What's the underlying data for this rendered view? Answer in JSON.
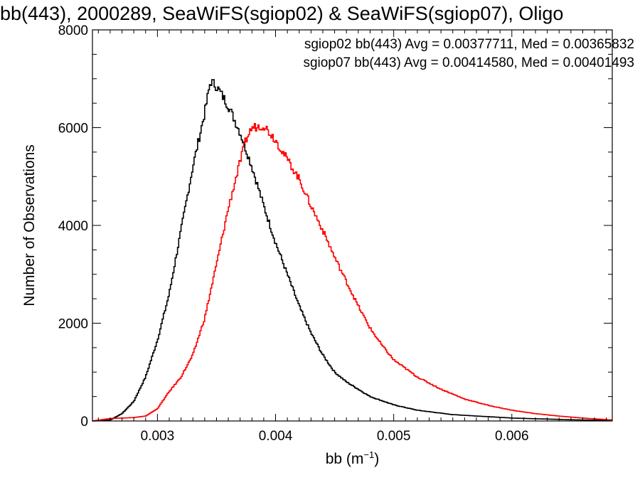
{
  "chart_data": {
    "type": "histogram-step",
    "title": "bb(443), 2000289, SeaWiFS(sgiop02) & SeaWiFS(sgiop07), Oligo",
    "xlabel": "bb (m",
    "xlabel_sup": "−1",
    "xlabel_close": ")",
    "ylabel": "Number of Observations",
    "xlim": [
      0.00245,
      0.00685
    ],
    "ylim": [
      0,
      8000
    ],
    "x_ticks": [
      {
        "v": 0.003,
        "label": "0.003"
      },
      {
        "v": 0.004,
        "label": "0.004"
      },
      {
        "v": 0.005,
        "label": "0.005"
      },
      {
        "v": 0.006,
        "label": "0.006"
      }
    ],
    "y_ticks": [
      {
        "v": 0,
        "label": "0"
      },
      {
        "v": 2000,
        "label": "2000"
      },
      {
        "v": 4000,
        "label": "4000"
      },
      {
        "v": 6000,
        "label": "6000"
      },
      {
        "v": 8000,
        "label": "8000"
      }
    ],
    "bin_width": 1e-05,
    "series": [
      {
        "color": "#000000",
        "annotation": "sgiop02 bb(443) Avg = 0.00377711, Med = 0.00365832",
        "x": [
          0.00245,
          0.0026,
          0.0027,
          0.0028,
          0.0029,
          0.003,
          0.0031,
          0.0032,
          0.0033,
          0.0034,
          0.00345,
          0.0035,
          0.0036,
          0.0037,
          0.0038,
          0.0039,
          0.004,
          0.0041,
          0.0042,
          0.0043,
          0.0044,
          0.0045,
          0.0046,
          0.0047,
          0.0048,
          0.005,
          0.0052,
          0.0055,
          0.006,
          0.0065,
          0.00685
        ],
        "y": [
          0,
          20,
          150,
          400,
          900,
          1650,
          2600,
          3900,
          5200,
          6300,
          6950,
          6850,
          6450,
          5900,
          5200,
          4400,
          3650,
          3000,
          2350,
          1800,
          1350,
          1000,
          800,
          650,
          500,
          330,
          220,
          130,
          60,
          25,
          10
        ]
      },
      {
        "color": "#ff0000",
        "annotation": "sgiop07 bb(443) Avg = 0.00414580, Med = 0.00401493",
        "x": [
          0.00245,
          0.0026,
          0.0028,
          0.0029,
          0.003,
          0.0031,
          0.0032,
          0.0033,
          0.0034,
          0.0035,
          0.0036,
          0.0037,
          0.00375,
          0.0038,
          0.0039,
          0.004,
          0.0041,
          0.0042,
          0.0043,
          0.0044,
          0.0045,
          0.0046,
          0.0047,
          0.0048,
          0.0049,
          0.005,
          0.0052,
          0.0054,
          0.0056,
          0.0058,
          0.006,
          0.0062,
          0.0064,
          0.0066,
          0.00685
        ],
        "y": [
          0,
          50,
          70,
          100,
          250,
          600,
          900,
          1350,
          2100,
          3200,
          4350,
          5300,
          5750,
          6000,
          6050,
          5750,
          5350,
          4950,
          4400,
          3900,
          3350,
          2850,
          2350,
          1900,
          1550,
          1250,
          900,
          650,
          450,
          320,
          220,
          150,
          100,
          60,
          20
        ]
      }
    ]
  }
}
